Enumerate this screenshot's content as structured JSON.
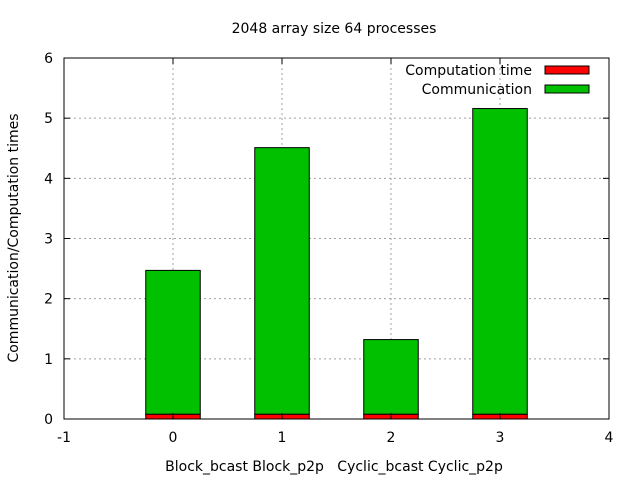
{
  "chart_data": {
    "type": "bar",
    "stacked": true,
    "title": "2048 array size 64 processes",
    "xlabel": "Block_bcast Block_p2p   Cyclic_bcast Cyclic_p2p",
    "ylabel": "Communication/Computation times",
    "xlim": [
      -1,
      4
    ],
    "ylim": [
      0,
      6
    ],
    "x_ticks": [
      "-1",
      "0",
      "1",
      "2",
      "3",
      "4"
    ],
    "y_ticks": [
      "0",
      "1",
      "2",
      "3",
      "4",
      "5",
      "6"
    ],
    "grid": true,
    "legend_position": "top-right",
    "x": [
      0,
      1,
      2,
      3
    ],
    "series": [
      {
        "name": "Computation time",
        "color": "#ff0000",
        "values": [
          0.08,
          0.08,
          0.08,
          0.08
        ]
      },
      {
        "name": "Communication",
        "color": "#00c000",
        "values": [
          2.39,
          4.43,
          1.24,
          5.08
        ]
      }
    ]
  }
}
